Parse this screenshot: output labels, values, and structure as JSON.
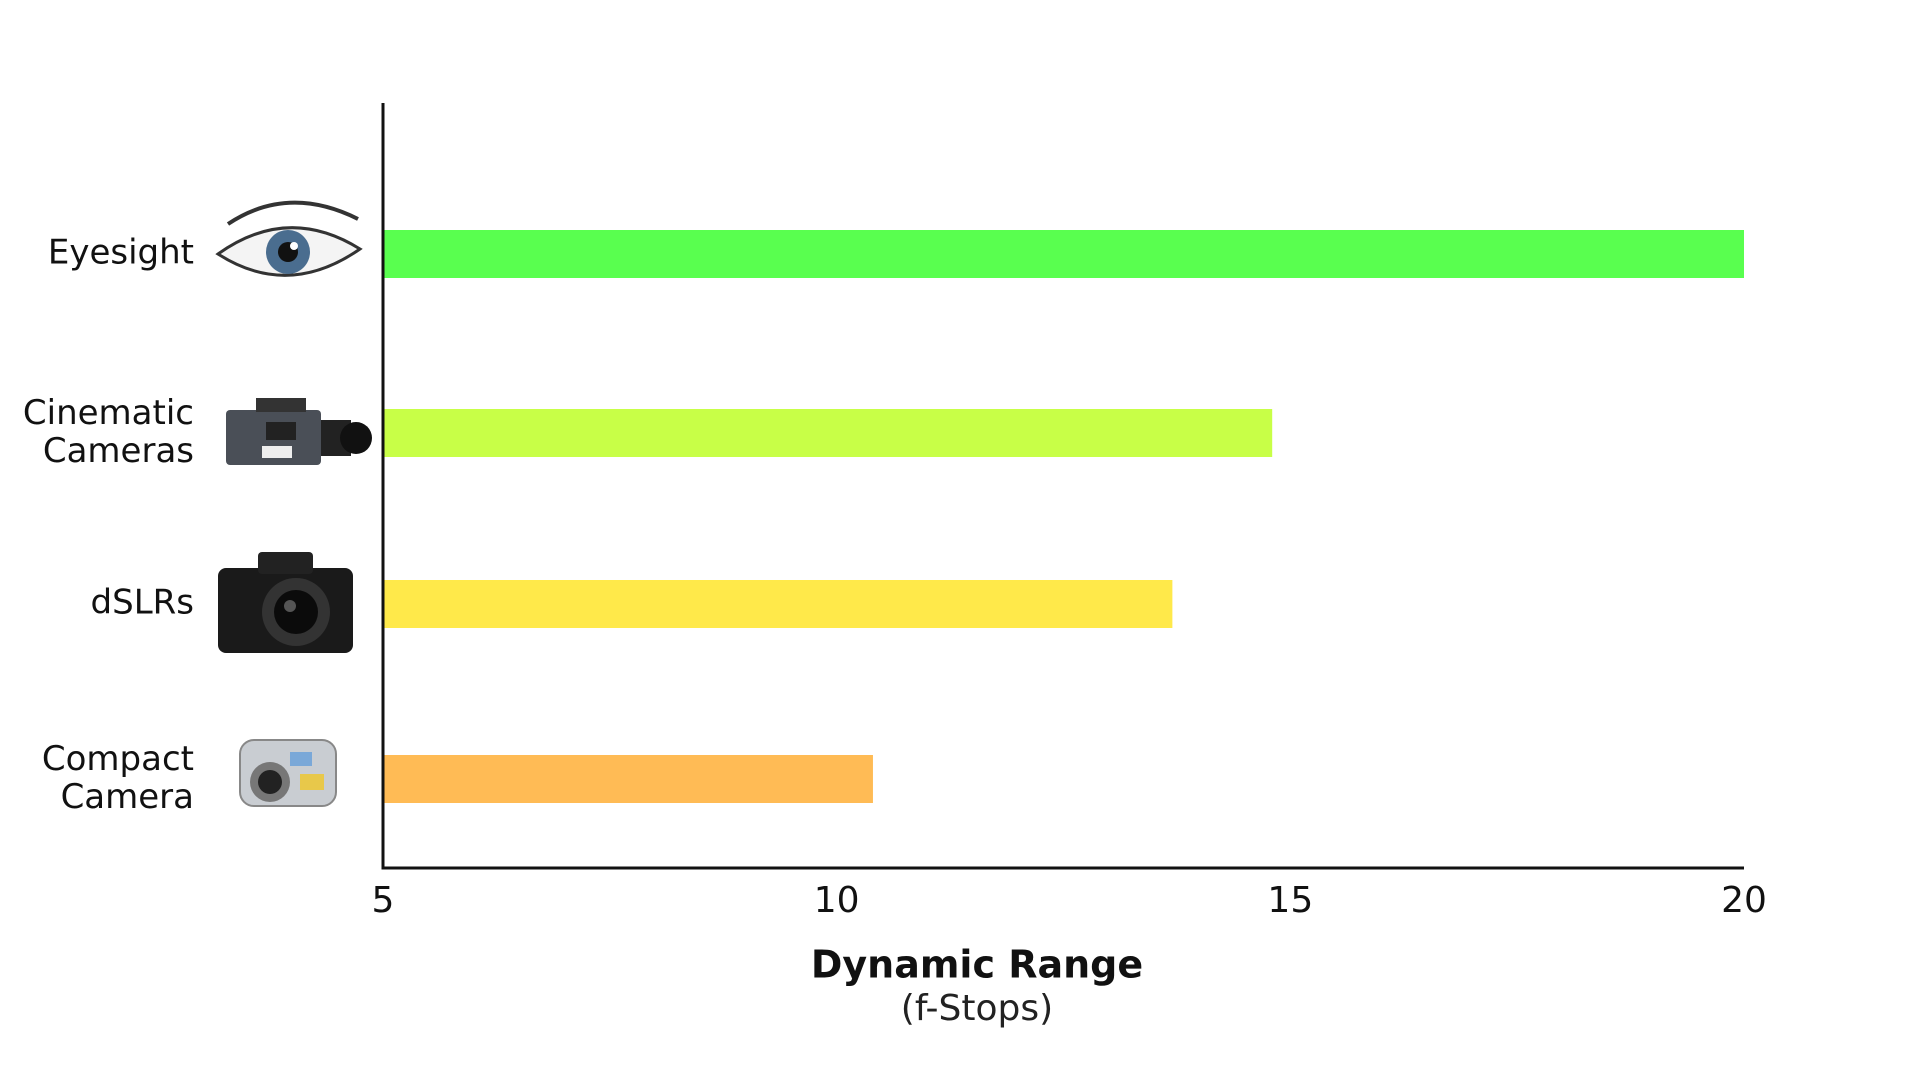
{
  "chart_data": {
    "type": "bar",
    "orientation": "horizontal",
    "categories": [
      "Eyesight",
      "Cinematic Cameras",
      "dSLRs",
      "Compact Camera"
    ],
    "values": [
      20,
      14.8,
      13.7,
      10.4
    ],
    "colors": [
      "#59ff4f",
      "#c8ff47",
      "#ffe94a",
      "#ffbb55"
    ],
    "xlim": [
      5,
      20
    ],
    "xticks": [
      5,
      10,
      15,
      20
    ],
    "grid": false,
    "x_label": "Dynamic Range",
    "x_sublabel": "(f-Stops)"
  }
}
